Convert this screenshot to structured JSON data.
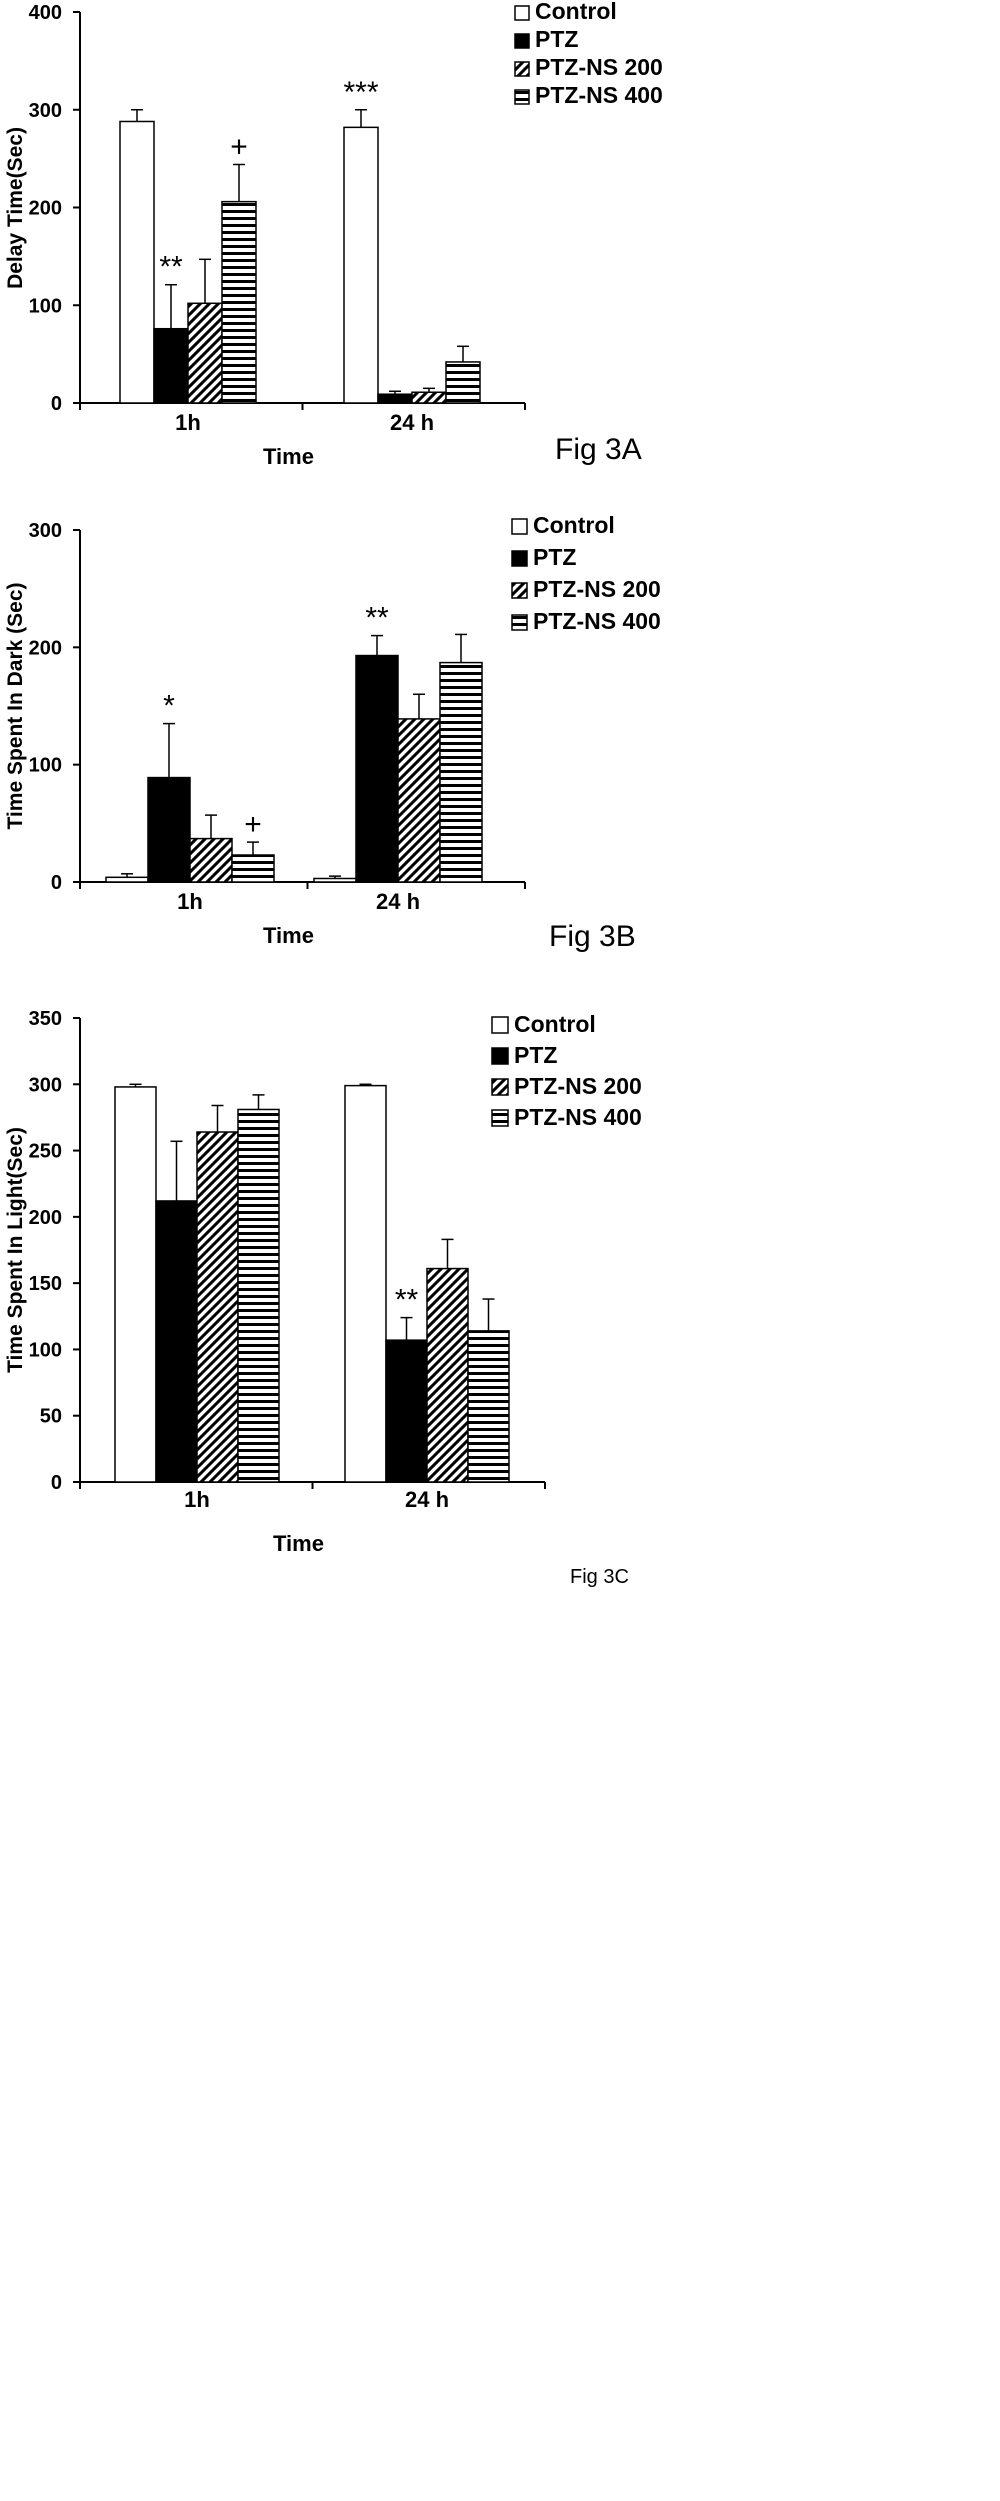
{
  "chart_data": [
    {
      "type": "bar",
      "figure_label": "Fig 3A",
      "xlabel": "Time",
      "ylabel": "Delay Time(Sec)",
      "ylim": [
        0,
        400
      ],
      "yticks": [
        "0",
        "100",
        "200",
        "300",
        "400"
      ],
      "categories": [
        "1h",
        "24 h"
      ],
      "legend_placement": "top-right",
      "series": [
        {
          "name": "Control",
          "fill": "white",
          "values": [
            288,
            282
          ],
          "errors": [
            12,
            18
          ],
          "annotations": [
            "",
            "***"
          ]
        },
        {
          "name": "PTZ",
          "fill": "black",
          "values": [
            76,
            9
          ],
          "errors": [
            45,
            3
          ],
          "annotations": [
            "**",
            ""
          ]
        },
        {
          "name": "PTZ-NS 200",
          "fill": "diagonal",
          "values": [
            102,
            11
          ],
          "errors": [
            45,
            4
          ],
          "annotations": [
            "",
            ""
          ]
        },
        {
          "name": "PTZ-NS 400",
          "fill": "horizontal",
          "values": [
            206,
            42
          ],
          "errors": [
            38,
            16
          ],
          "annotations": [
            "+",
            ""
          ]
        }
      ]
    },
    {
      "type": "bar",
      "figure_label": "Fig 3B",
      "xlabel": "Time",
      "ylabel": "Time Spent In Dark (Sec)",
      "ylim": [
        0,
        300
      ],
      "yticks": [
        "0",
        "100",
        "200",
        "300"
      ],
      "categories": [
        "1h",
        "24 h"
      ],
      "legend_placement": "top-right",
      "series": [
        {
          "name": "Control",
          "fill": "white",
          "values": [
            4,
            3
          ],
          "errors": [
            3,
            2
          ],
          "annotations": [
            "",
            ""
          ]
        },
        {
          "name": "PTZ",
          "fill": "black",
          "values": [
            89,
            193
          ],
          "errors": [
            46,
            17
          ],
          "annotations": [
            "*",
            "**"
          ]
        },
        {
          "name": "PTZ-NS 200",
          "fill": "diagonal",
          "values": [
            37,
            139
          ],
          "errors": [
            20,
            21
          ],
          "annotations": [
            "",
            ""
          ]
        },
        {
          "name": "PTZ-NS 400",
          "fill": "horizontal",
          "values": [
            23,
            187
          ],
          "errors": [
            11,
            24
          ],
          "annotations": [
            "+",
            ""
          ]
        }
      ]
    },
    {
      "type": "bar",
      "figure_label": "Fig 3C",
      "xlabel": "Time",
      "ylabel": "Time Spent In Light(Sec)",
      "ylim": [
        0,
        350
      ],
      "yticks": [
        "0",
        "50",
        "100",
        "150",
        "200",
        "250",
        "300",
        "350"
      ],
      "categories": [
        "1h",
        "24 h"
      ],
      "legend_placement": "top-right",
      "series": [
        {
          "name": "Control",
          "fill": "white",
          "values": [
            298,
            299
          ],
          "errors": [
            2,
            1
          ],
          "annotations": [
            "",
            ""
          ]
        },
        {
          "name": "PTZ",
          "fill": "black",
          "values": [
            212,
            107
          ],
          "errors": [
            45,
            17
          ],
          "annotations": [
            "",
            "**"
          ]
        },
        {
          "name": "PTZ-NS 200",
          "fill": "diagonal",
          "values": [
            264,
            161
          ],
          "errors": [
            20,
            22
          ],
          "annotations": [
            "",
            ""
          ]
        },
        {
          "name": "PTZ-NS 400",
          "fill": "horizontal",
          "values": [
            281,
            114
          ],
          "errors": [
            11,
            24
          ],
          "annotations": [
            "",
            ""
          ]
        }
      ]
    }
  ]
}
